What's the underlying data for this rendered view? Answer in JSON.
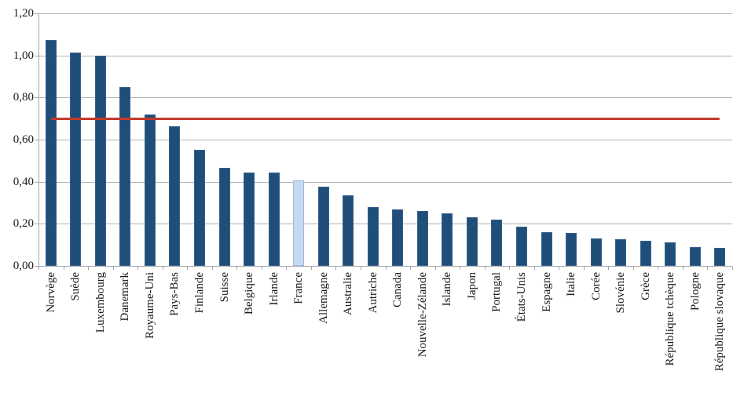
{
  "chart_data": {
    "type": "bar",
    "title": "",
    "categories": [
      "Norvège",
      "Suède",
      "Luxembourg",
      "Danemark",
      "Royaume-Uni",
      "Pays-Bas",
      "Finlande",
      "Suisse",
      "Belgique",
      "Irlande",
      "France",
      "Allemagne",
      "Australie",
      "Autriche",
      "Canada",
      "Nouvelle-Zélande",
      "Islande",
      "Japon",
      "Portugal",
      "États-Unis",
      "Espagne",
      "Italie",
      "Corée",
      "Slovénie",
      "Grèce",
      "République tchèque",
      "Pologne",
      "République slovaque"
    ],
    "values": [
      1.075,
      1.015,
      1.0,
      0.85,
      0.72,
      0.665,
      0.55,
      0.465,
      0.445,
      0.445,
      0.405,
      0.375,
      0.335,
      0.28,
      0.27,
      0.26,
      0.25,
      0.23,
      0.22,
      0.185,
      0.16,
      0.155,
      0.13,
      0.125,
      0.12,
      0.11,
      0.09,
      0.085
    ],
    "highlighted_category": "France",
    "highlighted_index": 10,
    "reference_line": {
      "value": 0.7
    },
    "ylim": [
      0,
      1.2
    ],
    "yticks": {
      "values": [
        0,
        0.2,
        0.4,
        0.6,
        0.8,
        1.0,
        1.2
      ],
      "labels": [
        "0,00",
        "0,20",
        "0,40",
        "0,60",
        "0,80",
        "1,00",
        "1,20"
      ]
    },
    "grid": true,
    "legend": false,
    "xlabel": "",
    "ylabel": "",
    "colors": {
      "bar": "#1f4e79",
      "bar_border": "#35618f",
      "highlight": "#c6d9f0",
      "highlight_border": "#9cb8dc",
      "reference_line": "#c2392b",
      "gridline": "#b3b3b3",
      "axis": "#a6a6a6",
      "text": "#1a1a1a",
      "background": "#ffffff"
    }
  }
}
